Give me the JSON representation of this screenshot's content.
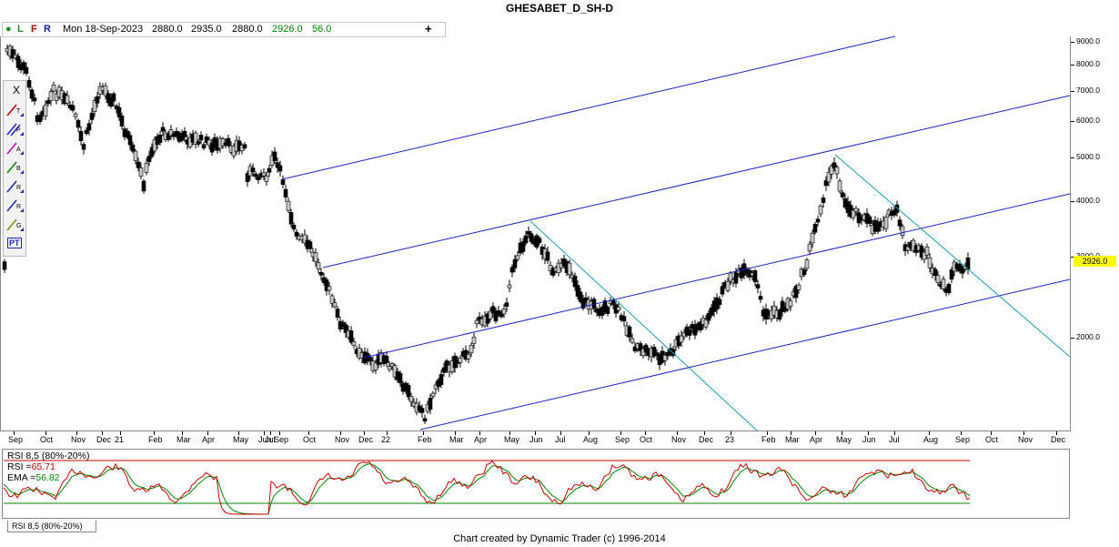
{
  "title": "GHESABET_D_SH-D",
  "infobar": {
    "flags": [
      "●",
      "L",
      "F",
      "R"
    ],
    "date": "Mon 18-Sep-2023",
    "open": "2880.0",
    "high": "2935.0",
    "low": "2880.0",
    "close": "2926.0",
    "change": "56.0",
    "plus": "+"
  },
  "colors": {
    "channel": "#1a22c8",
    "trend": "#1ba0b4",
    "rsi_line": "#d00000",
    "ema_line": "#008800",
    "band_top": "#d00000",
    "band_bottom": "#008800",
    "last_price_bg": "#ffff00"
  },
  "price_axis": {
    "scale": "log",
    "ticks": [
      "9000.0",
      "8000.0",
      "7000.0",
      "6000.0",
      "5000.0",
      "4000.0",
      "3000.0",
      "2000.0"
    ],
    "last_price": "2926.0"
  },
  "time_axis": {
    "labels": [
      "Sep",
      "Oct",
      "Nov",
      "Dec",
      "21",
      "Feb",
      "Mar",
      "Apr",
      "May",
      "Jun",
      "Jul",
      "Sep",
      "Oct",
      "Nov",
      "Dec",
      "22",
      "Feb",
      "Mar",
      "Apr",
      "May",
      "Jun",
      "Jul",
      "Aug",
      "Sep",
      "Oct",
      "Nov",
      "Dec",
      "23",
      "Feb",
      "Mar",
      "Apr",
      "May",
      "Jun",
      "Jul",
      "Aug",
      "Sep",
      "Oct",
      "Nov",
      "Dec"
    ]
  },
  "toolbox": {
    "icons": [
      "close-icon",
      "trendline-tool-icon",
      "parallel-tool-icon",
      "retracement-tool-icon",
      "alt-band-tool-icon",
      "ratio-tool-icon",
      "ratio-alt-tool-icon",
      "gann-fan-tool-icon",
      "pattern-tool-icon"
    ],
    "labels": [
      "X",
      "T",
      "P",
      "A",
      "B",
      "R",
      "R",
      "G",
      "PT"
    ]
  },
  "rsi": {
    "tab": "RSI 8,5 (80%-20%)",
    "header": "RSI 8,5 (80%-20%)",
    "rsi_label": "RSI =",
    "rsi_value": "65.71",
    "ema_label": "EMA =",
    "ema_value": "56.82",
    "band_upper": 80,
    "band_lower": 20
  },
  "footer": "Chart created by Dynamic Trader  (c)  1996-2014"
}
